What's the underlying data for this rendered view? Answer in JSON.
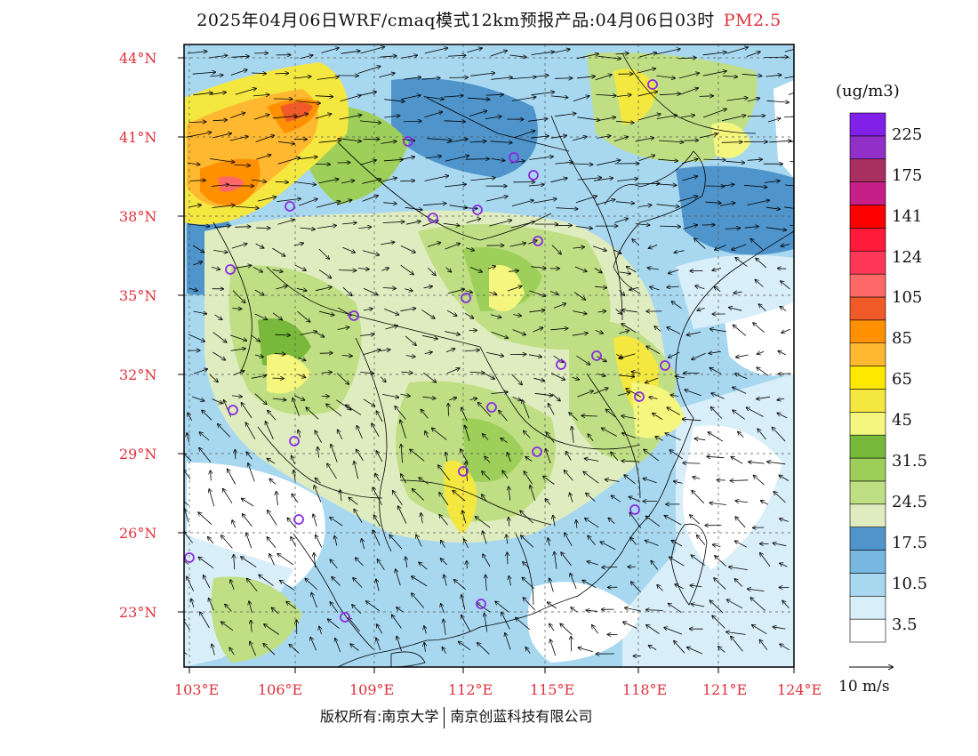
{
  "title": {
    "main": "2025年04月06日WRF/cmaq模式12km预报产品:04月06日03时",
    "pollutant": "PM2.5"
  },
  "lat_labels": [
    "44°N",
    "41°N",
    "38°N",
    "35°N",
    "32°N",
    "29°N",
    "26°N",
    "23°N"
  ],
  "lon_labels": [
    "103°E",
    "106°E",
    "109°E",
    "112°E",
    "115°E",
    "118°E",
    "121°E",
    "124°E"
  ],
  "legend": {
    "unit": "(ug/m3)",
    "colors": [
      "#ffffff",
      "#d8eef8",
      "#a8d8f0",
      "#78b8e0",
      "#4f95cc",
      "#dfecc0",
      "#c0df85",
      "#9ecf5a",
      "#78b83a",
      "#f4f67e",
      "#f4e840",
      "#ffe800",
      "#ffb830",
      "#ff9000",
      "#f05a28",
      "#ff6868",
      "#ff3858",
      "#ff1a3a",
      "#ff0000",
      "#c81e88",
      "#a83060",
      "#9030c8",
      "#8020e8"
    ],
    "labels": [
      "3.5",
      "10.5",
      "17.5",
      "24.5",
      "31.5",
      "45",
      "65",
      "85",
      "105",
      "124",
      "141",
      "175",
      "225"
    ]
  },
  "wind_reference": {
    "label": "10 m/s"
  },
  "footer": {
    "copyright": "版权所有:南京大学",
    "company": "南京创蓝科技有限公司"
  }
}
